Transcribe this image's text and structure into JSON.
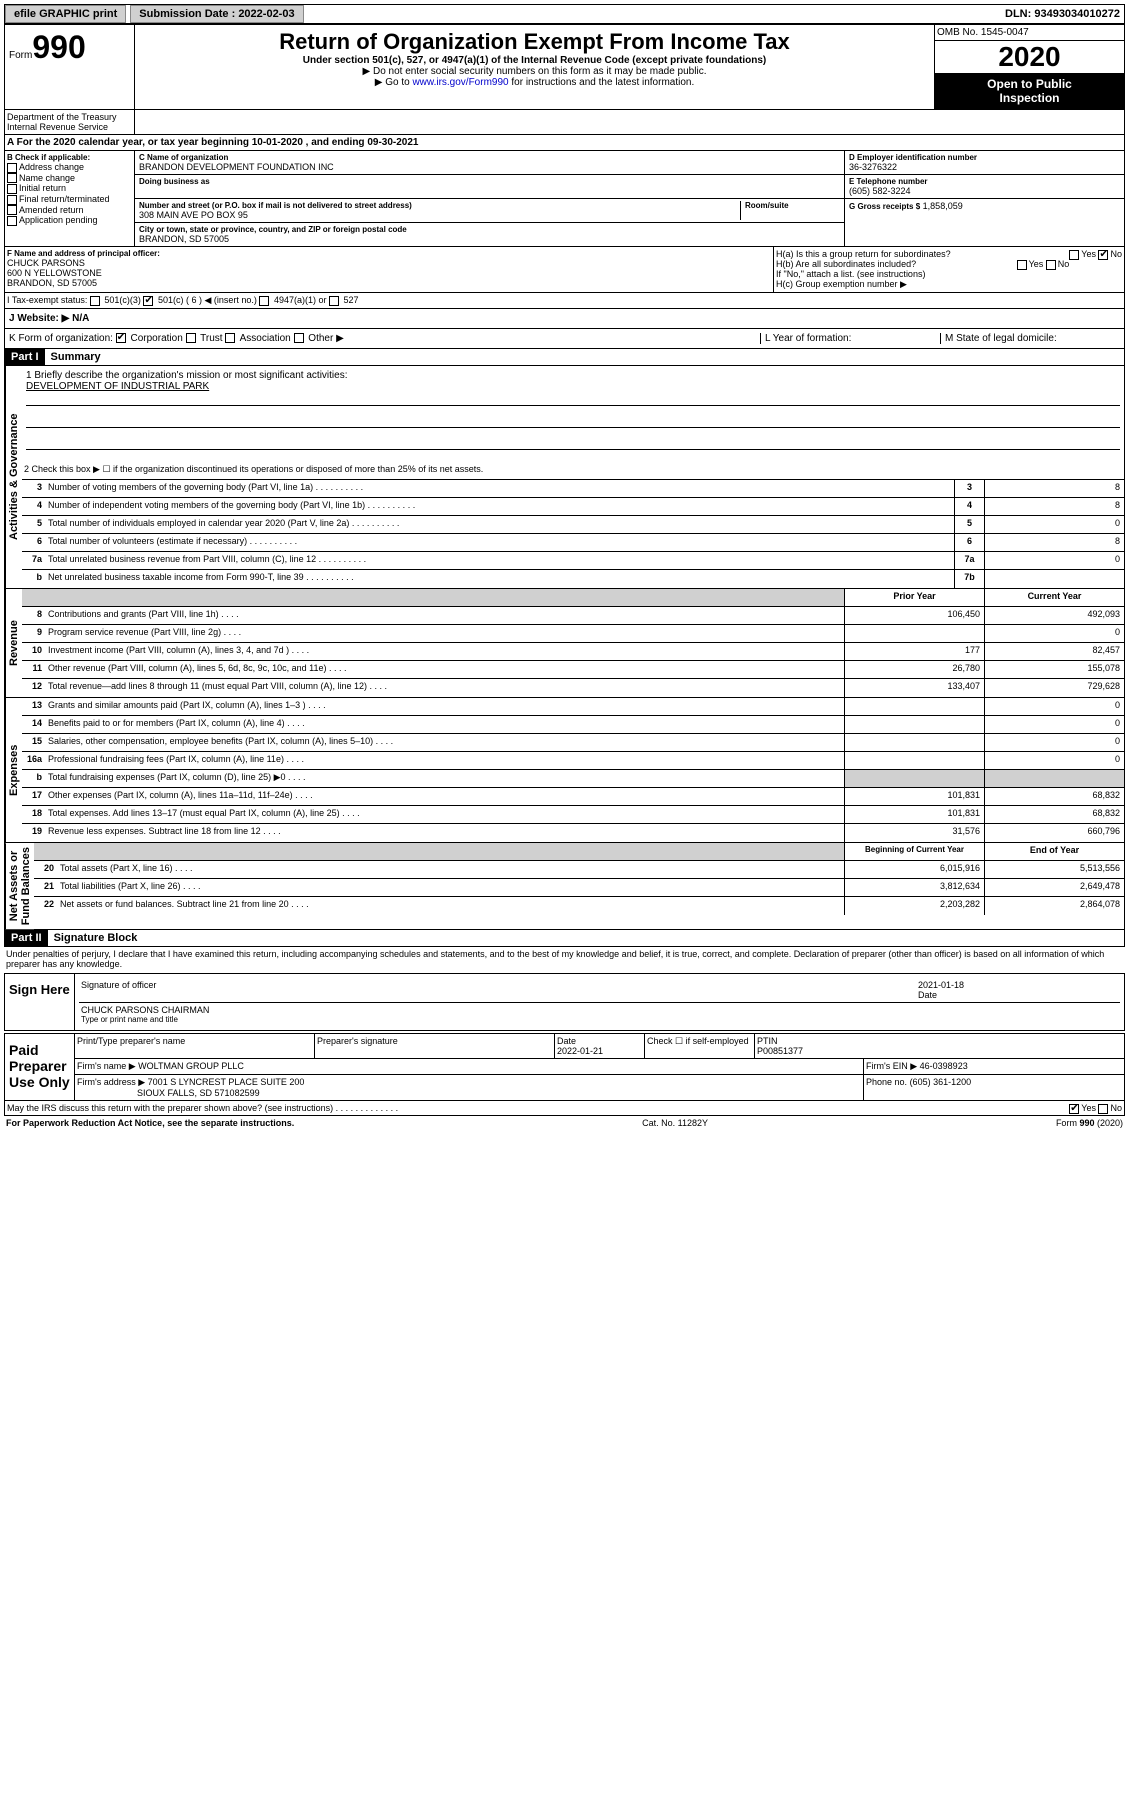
{
  "topbar": {
    "efile": "efile GRAPHIC print",
    "sub_label": "Submission Date : 2022-02-03",
    "dln": "DLN: 93493034010272"
  },
  "header": {
    "form": "Form",
    "n990": "990",
    "title": "Return of Organization Exempt From Income Tax",
    "sub": "Under section 501(c), 527, or 4947(a)(1) of the Internal Revenue Code (except private foundations)",
    "note1": "▶ Do not enter social security numbers on this form as it may be made public.",
    "note2_a": "▶ Go to ",
    "note2_link": "www.irs.gov/Form990",
    "note2_b": " for instructions and the latest information.",
    "omb": "OMB No. 1545-0047",
    "year": "2020",
    "inspection1": "Open to Public",
    "inspection2": "Inspection",
    "dept": "Department of the Treasury\nInternal Revenue Service"
  },
  "line_a": "A For the 2020 calendar year, or tax year beginning 10-01-2020   , and ending 09-30-2021",
  "section_b": {
    "label": "B Check if applicable:",
    "items": [
      "Address change",
      "Name change",
      "Initial return",
      "Final return/terminated",
      "Amended return",
      "Application pending"
    ]
  },
  "section_c": {
    "name_label": "C Name of organization",
    "name": "BRANDON DEVELOPMENT FOUNDATION INC",
    "dba_label": "Doing business as",
    "addr_label": "Number and street (or P.O. box if mail is not delivered to street address)",
    "room_label": "Room/suite",
    "addr": "308 MAIN AVE PO BOX 95",
    "city_label": "City or town, state or province, country, and ZIP or foreign postal code",
    "city": "BRANDON, SD  57005"
  },
  "section_d": {
    "label": "D Employer identification number",
    "ein": "36-3276322",
    "tel_label": "E Telephone number",
    "tel": "(605) 582-3224",
    "gross_label": "G Gross receipts $",
    "gross": "1,858,059"
  },
  "section_f": {
    "label": "F Name and address of principal officer:",
    "name": "CHUCK PARSONS",
    "addr1": "600 N YELLOWSTONE",
    "addr2": "BRANDON, SD  57005"
  },
  "section_h": {
    "ha": "H(a)  Is this a group return for subordinates?",
    "hb": "H(b)  Are all subordinates included?",
    "hb_note": "If \"No,\" attach a list. (see instructions)",
    "hc": "H(c)  Group exemption number ▶",
    "yes": "Yes",
    "no": "No"
  },
  "tax_exempt": {
    "label": "I    Tax-exempt status:",
    "c3": "501(c)(3)",
    "c": "501(c) ( 6 ) ◀ (insert no.)",
    "a1": "4947(a)(1) or",
    "s527": "527"
  },
  "website": {
    "label": "J   Website: ▶",
    "value": "N/A"
  },
  "formorg": {
    "label": "K Form of organization:",
    "corp": "Corporation",
    "trust": "Trust",
    "assoc": "Association",
    "other": "Other ▶",
    "l": "L Year of formation:",
    "m": "M State of legal domicile:"
  },
  "part1": {
    "header": "Part I",
    "title": "Summary",
    "side_gov": "Activities & Governance",
    "side_rev": "Revenue",
    "side_exp": "Expenses",
    "side_net": "Net Assets or\nFund Balances",
    "l1": "1  Briefly describe the organization's mission or most significant activities:",
    "mission": "DEVELOPMENT OF INDUSTRIAL PARK",
    "l2": "2    Check this box ▶ ☐  if the organization discontinued its operations or disposed of more than 25% of its net assets.",
    "rows_gov": [
      {
        "n": "3",
        "t": "Number of voting members of the governing body (Part VI, line 1a)",
        "box": "3",
        "v": "8"
      },
      {
        "n": "4",
        "t": "Number of independent voting members of the governing body (Part VI, line 1b)",
        "box": "4",
        "v": "8"
      },
      {
        "n": "5",
        "t": "Total number of individuals employed in calendar year 2020 (Part V, line 2a)",
        "box": "5",
        "v": "0"
      },
      {
        "n": "6",
        "t": "Total number of volunteers (estimate if necessary)",
        "box": "6",
        "v": "8"
      },
      {
        "n": "7a",
        "t": "Total unrelated business revenue from Part VIII, column (C), line 12",
        "box": "7a",
        "v": "0"
      },
      {
        "n": "b",
        "t": "Net unrelated business taxable income from Form 990-T, line 39",
        "box": "7b",
        "v": ""
      }
    ],
    "hdr_prior": "Prior Year",
    "hdr_curr": "Current Year",
    "rows_rev": [
      {
        "n": "8",
        "t": "Contributions and grants (Part VIII, line 1h)",
        "p": "106,450",
        "c": "492,093"
      },
      {
        "n": "9",
        "t": "Program service revenue (Part VIII, line 2g)",
        "p": "",
        "c": "0"
      },
      {
        "n": "10",
        "t": "Investment income (Part VIII, column (A), lines 3, 4, and 7d )",
        "p": "177",
        "c": "82,457"
      },
      {
        "n": "11",
        "t": "Other revenue (Part VIII, column (A), lines 5, 6d, 8c, 9c, 10c, and 11e)",
        "p": "26,780",
        "c": "155,078"
      },
      {
        "n": "12",
        "t": "Total revenue—add lines 8 through 11 (must equal Part VIII, column (A), line 12)",
        "p": "133,407",
        "c": "729,628"
      }
    ],
    "rows_exp": [
      {
        "n": "13",
        "t": "Grants and similar amounts paid (Part IX, column (A), lines 1–3 )",
        "p": "",
        "c": "0"
      },
      {
        "n": "14",
        "t": "Benefits paid to or for members (Part IX, column (A), line 4)",
        "p": "",
        "c": "0"
      },
      {
        "n": "15",
        "t": "Salaries, other compensation, employee benefits (Part IX, column (A), lines 5–10)",
        "p": "",
        "c": "0"
      },
      {
        "n": "16a",
        "t": "Professional fundraising fees (Part IX, column (A), line 11e)",
        "p": "",
        "c": "0"
      },
      {
        "n": "b",
        "t": "Total fundraising expenses (Part IX, column (D), line 25) ▶0",
        "p": "gray",
        "c": "gray"
      },
      {
        "n": "17",
        "t": "Other expenses (Part IX, column (A), lines 11a–11d, 11f–24e)",
        "p": "101,831",
        "c": "68,832"
      },
      {
        "n": "18",
        "t": "Total expenses. Add lines 13–17 (must equal Part IX, column (A), line 25)",
        "p": "101,831",
        "c": "68,832"
      },
      {
        "n": "19",
        "t": "Revenue less expenses. Subtract line 18 from line 12",
        "p": "31,576",
        "c": "660,796"
      }
    ],
    "hdr_beg": "Beginning of Current Year",
    "hdr_end": "End of Year",
    "rows_net": [
      {
        "n": "20",
        "t": "Total assets (Part X, line 16)",
        "p": "6,015,916",
        "c": "5,513,556"
      },
      {
        "n": "21",
        "t": "Total liabilities (Part X, line 26)",
        "p": "3,812,634",
        "c": "2,649,478"
      },
      {
        "n": "22",
        "t": "Net assets or fund balances. Subtract line 21 from line 20",
        "p": "2,203,282",
        "c": "2,864,078"
      }
    ]
  },
  "part2": {
    "header": "Part II",
    "title": "Signature Block",
    "perjury": "Under penalties of perjury, I declare that I have examined this return, including accompanying schedules and statements, and to the best of my knowledge and belief, it is true, correct, and complete. Declaration of preparer (other than officer) is based on all information of which preparer has any knowledge.",
    "sign_here": "Sign Here",
    "sig_officer": "Signature of officer",
    "sig_date": "Date",
    "sig_date_val": "2021-01-18",
    "officer": "CHUCK PARSONS  CHAIRMAN",
    "type_name": "Type or print name and title",
    "paid_prep": "Paid Preparer Use Only",
    "prep_name_label": "Print/Type preparer's name",
    "prep_sig_label": "Preparer's signature",
    "prep_date_label": "Date",
    "prep_date": "2022-01-21",
    "check_se": "Check ☐ if self-employed",
    "ptin_label": "PTIN",
    "ptin": "P00851377",
    "firm_name_label": "Firm's name    ▶",
    "firm_name": "WOLTMAN GROUP PLLC",
    "firm_ein_label": "Firm's EIN ▶",
    "firm_ein": "46-0398923",
    "firm_addr_label": "Firm's address ▶",
    "firm_addr1": "7001 S LYNCREST PLACE SUITE 200",
    "firm_addr2": "SIOUX FALLS, SD  571082599",
    "phone_label": "Phone no.",
    "phone": "(605) 361-1200",
    "discuss": "May the IRS discuss this return with the preparer shown above? (see instructions)",
    "yes": "Yes",
    "no": "No"
  },
  "footer": {
    "left": "For Paperwork Reduction Act Notice, see the separate instructions.",
    "mid": "Cat. No. 11282Y",
    "right": "Form 990 (2020)"
  }
}
